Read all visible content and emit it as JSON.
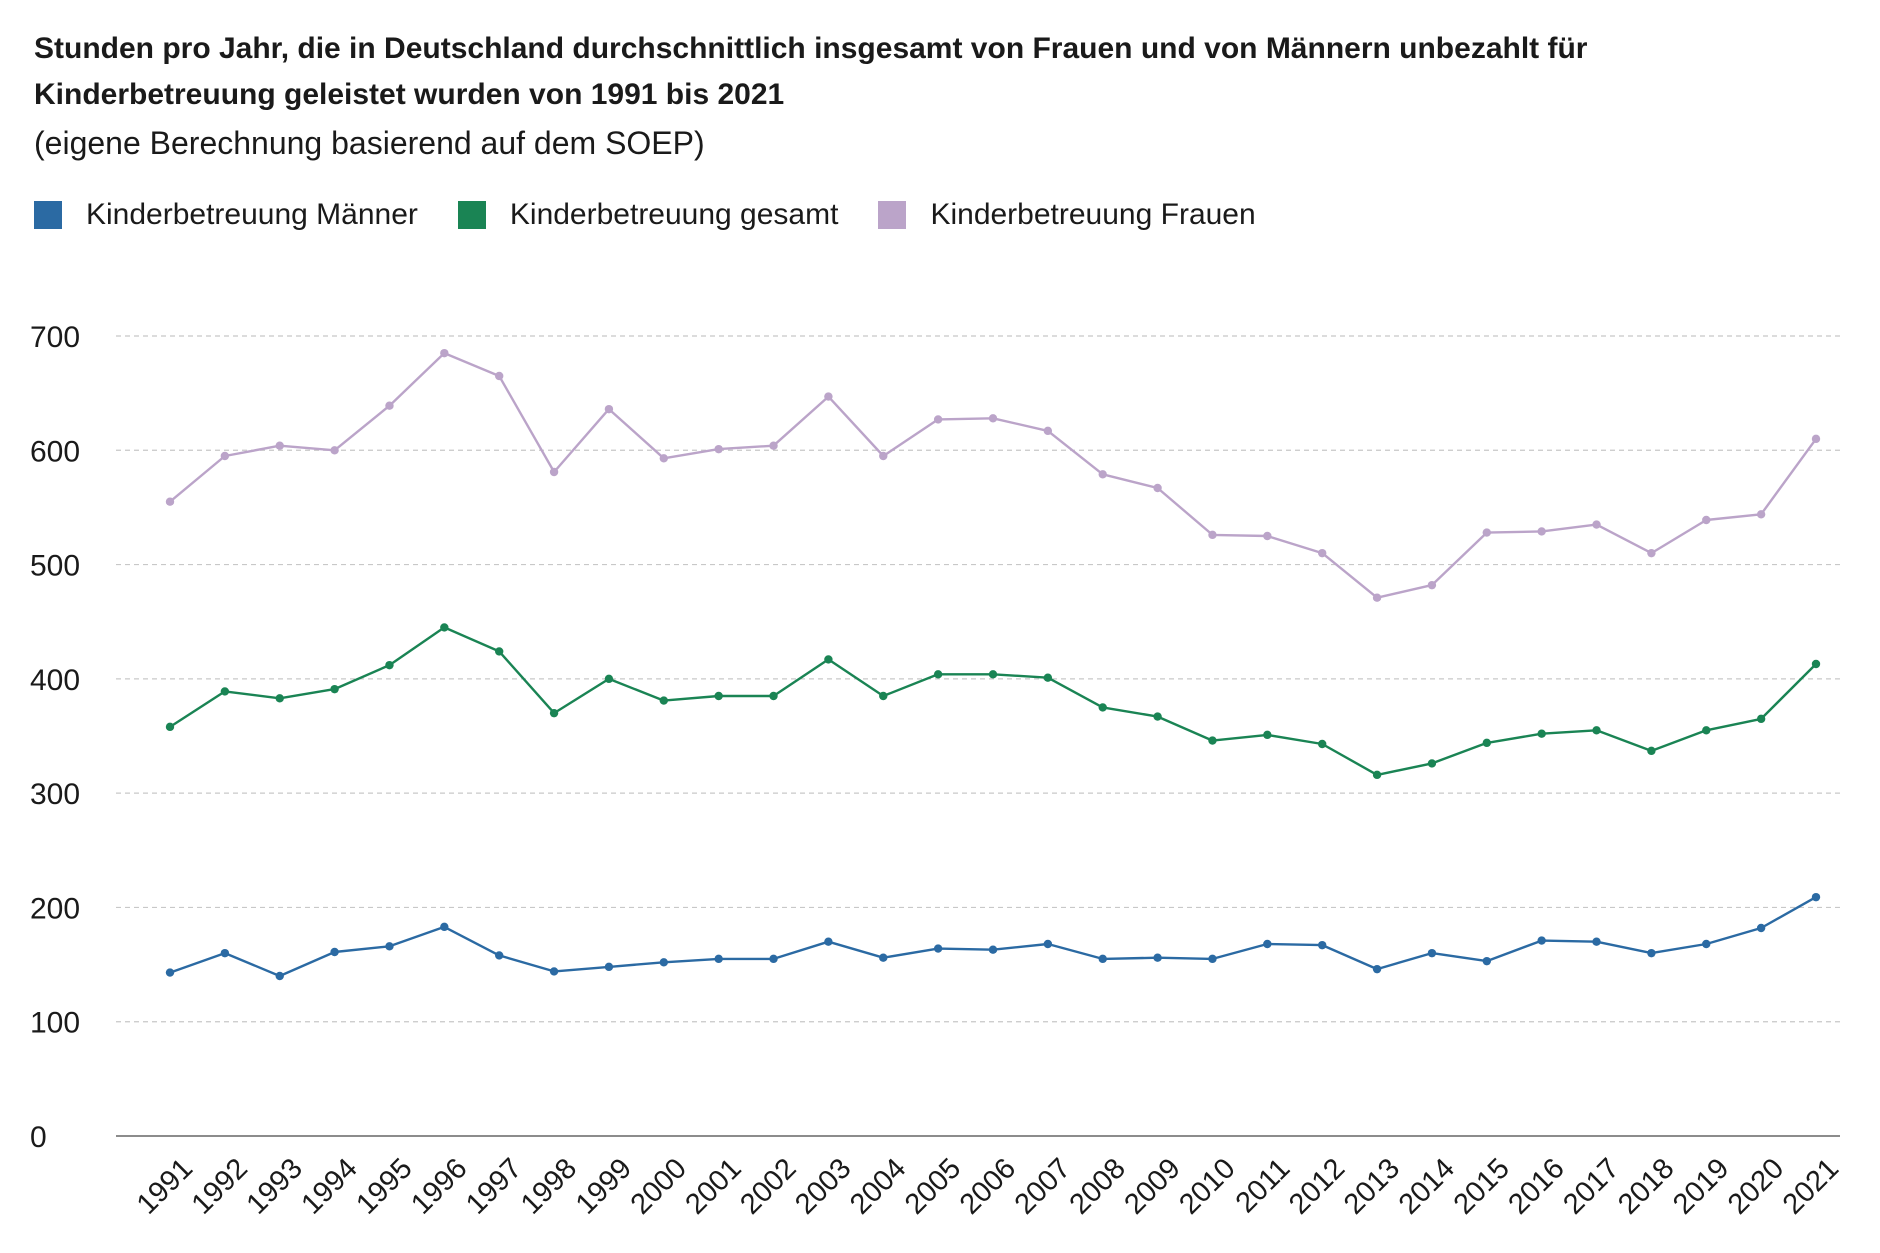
{
  "title": "Stunden pro Jahr, die in Deutschland durchschnittlich insgesamt von Frauen und von Männern unbezahlt für Kinderbetreuung geleistet wurden von 1991 bis 2021",
  "subtitle": "(eigene Berechnung basierend auf dem SOEP)",
  "legend": [
    {
      "label": "Kinderbetreuung Männer",
      "color": "#2b6aa3"
    },
    {
      "label": "Kinderbetreuung gesamt",
      "color": "#1a8454"
    },
    {
      "label": "Kinderbetreuung Frauen",
      "color": "#bba4c9"
    }
  ],
  "chart_data": {
    "type": "line",
    "x": [
      "1991",
      "1992",
      "1993",
      "1994",
      "1995",
      "1996",
      "1997",
      "1998",
      "1999",
      "2000",
      "2001",
      "2002",
      "2003",
      "2004",
      "2005",
      "2006",
      "2007",
      "2008",
      "2009",
      "2010",
      "2011",
      "2012",
      "2013",
      "2014",
      "2015",
      "2016",
      "2017",
      "2018",
      "2019",
      "2020",
      "2021"
    ],
    "series": [
      {
        "name": "Kinderbetreuung Männer",
        "color": "#2b6aa3",
        "values": [
          143,
          160,
          140,
          161,
          166,
          183,
          158,
          144,
          148,
          152,
          155,
          155,
          170,
          156,
          164,
          163,
          168,
          155,
          156,
          155,
          168,
          167,
          146,
          160,
          153,
          171,
          170,
          160,
          168,
          182,
          209
        ]
      },
      {
        "name": "Kinderbetreuung gesamt",
        "color": "#1a8454",
        "values": [
          358,
          389,
          383,
          391,
          412,
          445,
          424,
          370,
          400,
          381,
          385,
          385,
          417,
          385,
          404,
          404,
          401,
          375,
          367,
          346,
          351,
          343,
          316,
          326,
          344,
          352,
          355,
          337,
          355,
          365,
          413
        ]
      },
      {
        "name": "Kinderbetreuung Frauen",
        "color": "#bba4c9",
        "values": [
          555,
          595,
          604,
          600,
          639,
          685,
          665,
          581,
          636,
          593,
          601,
          604,
          647,
          595,
          627,
          628,
          617,
          579,
          567,
          526,
          525,
          510,
          471,
          482,
          528,
          529,
          535,
          510,
          539,
          544,
          610
        ]
      }
    ],
    "ylim": [
      0,
      700
    ],
    "yticks": [
      0,
      100,
      200,
      300,
      400,
      500,
      600,
      700
    ],
    "grid": true,
    "legend_position": "top-left"
  }
}
